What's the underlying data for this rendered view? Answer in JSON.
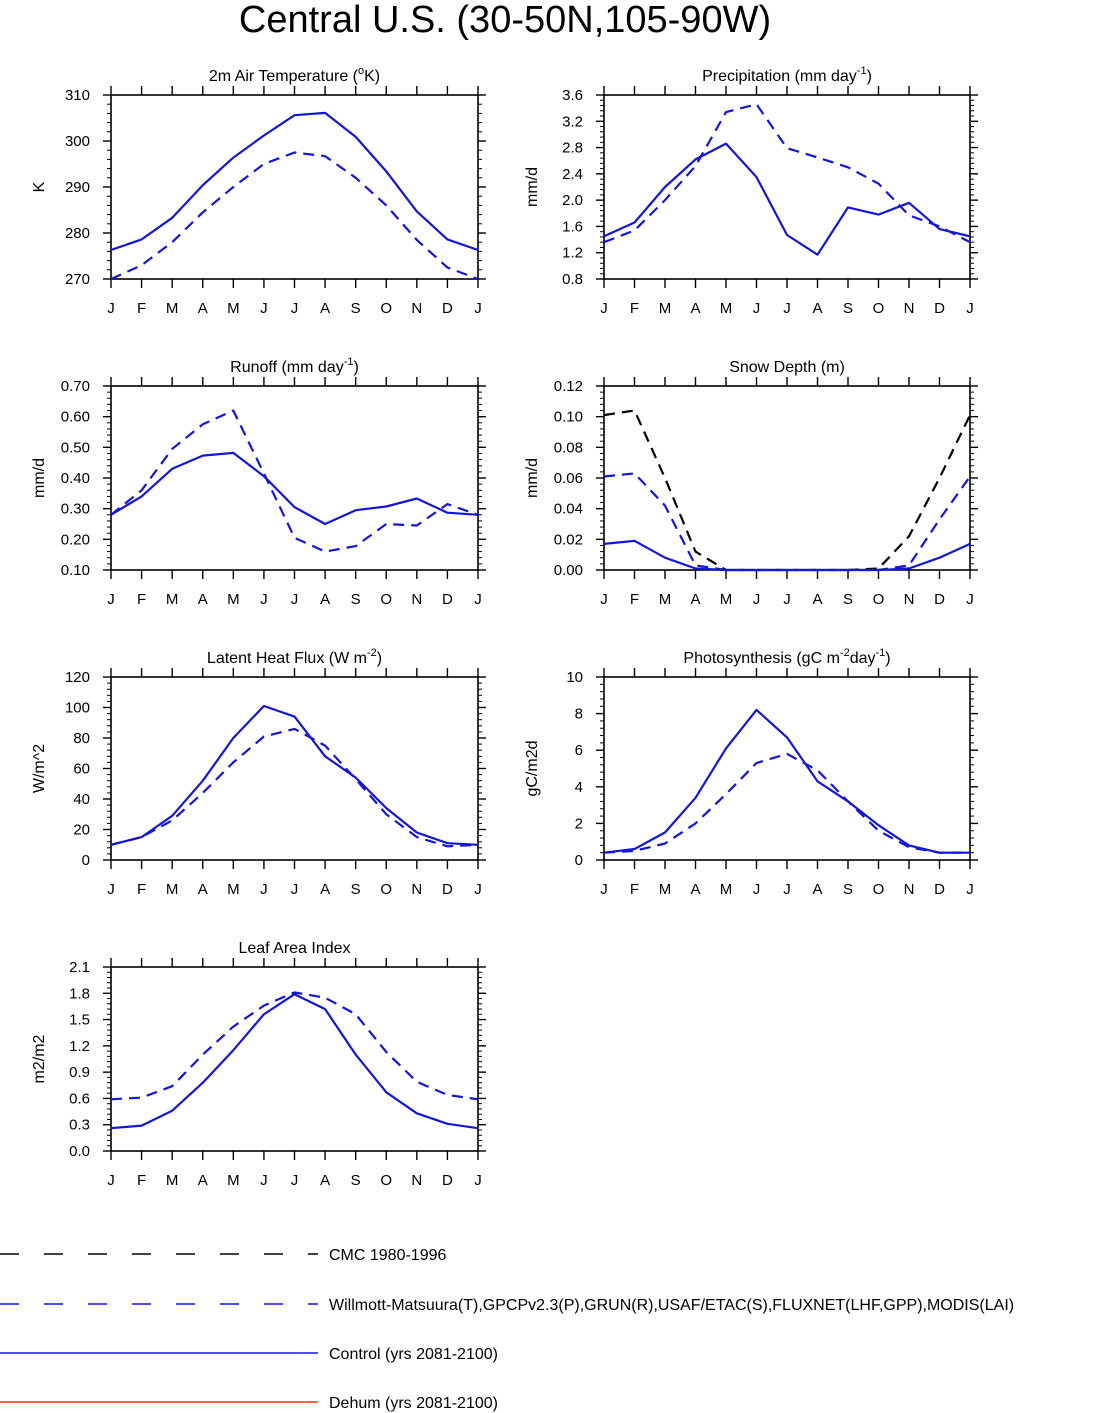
{
  "figure": {
    "title": "Central U.S. (30-50N,105-90W)"
  },
  "legend": [
    {
      "label": "CMC 1980-1996",
      "color": "#000000",
      "style": "dashed"
    },
    {
      "label": "Willmott-Matsuura(T),GPCPv2.3(P),GRUN(R),USAF/ETAC(S),FLUXNET(LHF,GPP),MODIS(LAI)",
      "color": "#1515d8",
      "style": "dashed"
    },
    {
      "label": "Control (yrs 2081-2100)",
      "color": "#1515d8",
      "style": "solid"
    },
    {
      "label": "Dehum (yrs 2081-2100)",
      "color": "#ff2a10",
      "style": "solid"
    }
  ],
  "chart_data": [
    {
      "type": "line",
      "title": "2m Air Temperature (°K)",
      "title_parts": [
        {
          "t": "2m Air Temperature ("
        },
        {
          "t": "o",
          "sup": true
        },
        {
          "t": "K)"
        }
      ],
      "ylabel": "K",
      "xlabel": "",
      "categories": [
        "J",
        "F",
        "M",
        "A",
        "M",
        "J",
        "J",
        "A",
        "S",
        "O",
        "N",
        "D",
        "J"
      ],
      "ylim": [
        270,
        310
      ],
      "yticks": [
        270,
        280,
        290,
        300,
        310
      ],
      "ytick_labels": [
        "270",
        "280",
        "290",
        "300",
        "310"
      ],
      "series": [
        {
          "name": "Willmott-Matsuura(T),GPCPv2.3(P),GRUN(R),USAF/ETAC(S),FLUXNET(LHF,GPP),MODIS(LAI)",
          "color": "#1515d8",
          "style": "dashed",
          "values": [
            270.0,
            273.0,
            278.0,
            284.5,
            290.0,
            295.0,
            297.5,
            296.7,
            292.0,
            286.0,
            278.5,
            272.5,
            270.0
          ]
        },
        {
          "name": "Control (yrs 2081-2100)",
          "color": "#1515d8",
          "style": "solid",
          "values": [
            276.3,
            278.6,
            283.3,
            290.4,
            296.4,
            301.2,
            305.6,
            306.1,
            300.9,
            293.4,
            284.7,
            278.6,
            276.3
          ]
        }
      ]
    },
    {
      "type": "line",
      "title": "Precipitation (mm day-1)",
      "title_parts": [
        {
          "t": "Precipitation (mm day"
        },
        {
          "t": "-1",
          "sup": true
        },
        {
          "t": ")"
        }
      ],
      "ylabel": "mm/d",
      "xlabel": "",
      "categories": [
        "J",
        "F",
        "M",
        "A",
        "M",
        "J",
        "J",
        "A",
        "S",
        "O",
        "N",
        "D",
        "J"
      ],
      "ylim": [
        0.8,
        3.6
      ],
      "yticks": [
        0.8,
        1.2,
        1.6,
        2.0,
        2.4,
        2.8,
        3.2,
        3.6
      ],
      "ytick_labels": [
        "0.8",
        "1.2",
        "1.6",
        "2.0",
        "2.4",
        "2.8",
        "3.2",
        "3.6"
      ],
      "series": [
        {
          "name": "Willmott-Matsuura(T),GPCPv2.3(P),GRUN(R),USAF/ETAC(S),FLUXNET(LHF,GPP),MODIS(LAI)",
          "color": "#1515d8",
          "style": "dashed",
          "values": [
            1.36,
            1.54,
            2.0,
            2.52,
            3.34,
            3.46,
            2.79,
            2.65,
            2.5,
            2.25,
            1.77,
            1.6,
            1.36
          ]
        },
        {
          "name": "Control (yrs 2081-2100)",
          "color": "#1515d8",
          "style": "solid",
          "values": [
            1.45,
            1.66,
            2.2,
            2.62,
            2.86,
            2.35,
            1.47,
            1.17,
            1.89,
            1.78,
            1.96,
            1.56,
            1.45
          ]
        }
      ]
    },
    {
      "type": "line",
      "title": "Runoff (mm day-1)",
      "title_parts": [
        {
          "t": "Runoff (mm day"
        },
        {
          "t": "-1",
          "sup": true
        },
        {
          "t": ")"
        }
      ],
      "ylabel": "mm/d",
      "xlabel": "",
      "categories": [
        "J",
        "F",
        "M",
        "A",
        "M",
        "J",
        "J",
        "A",
        "S",
        "O",
        "N",
        "D",
        "J"
      ],
      "ylim": [
        0.1,
        0.7
      ],
      "yticks": [
        0.1,
        0.2,
        0.3,
        0.4,
        0.5,
        0.6,
        0.7
      ],
      "ytick_labels": [
        "0.10",
        "0.20",
        "0.30",
        "0.40",
        "0.50",
        "0.60",
        "0.70"
      ],
      "series": [
        {
          "name": "Willmott-Matsuura(T),GPCPv2.3(P),GRUN(R),USAF/ETAC(S),FLUXNET(LHF,GPP),MODIS(LAI)",
          "color": "#1515d8",
          "style": "dashed",
          "values": [
            0.28,
            0.36,
            0.495,
            0.575,
            0.62,
            0.415,
            0.205,
            0.16,
            0.178,
            0.25,
            0.245,
            0.315,
            0.28
          ]
        },
        {
          "name": "Control (yrs 2081-2100)",
          "color": "#1515d8",
          "style": "solid",
          "values": [
            0.28,
            0.34,
            0.43,
            0.473,
            0.482,
            0.406,
            0.305,
            0.25,
            0.295,
            0.307,
            0.333,
            0.287,
            0.28
          ]
        }
      ]
    },
    {
      "type": "line",
      "title": "Snow Depth (m)",
      "title_parts": [
        {
          "t": "Snow Depth (m)"
        }
      ],
      "ylabel": "mm/d",
      "xlabel": "",
      "categories": [
        "J",
        "F",
        "M",
        "A",
        "M",
        "J",
        "J",
        "A",
        "S",
        "O",
        "N",
        "D",
        "J"
      ],
      "ylim": [
        0.0,
        0.12
      ],
      "yticks": [
        0.0,
        0.02,
        0.04,
        0.06,
        0.08,
        0.1,
        0.12
      ],
      "ytick_labels": [
        "0.00",
        "0.02",
        "0.04",
        "0.06",
        "0.08",
        "0.10",
        "0.12"
      ],
      "series": [
        {
          "name": "CMC 1980-1996",
          "color": "#000000",
          "style": "dashed",
          "values": [
            0.101,
            0.104,
            0.06,
            0.012,
            0.0,
            0.0,
            0.0,
            0.0,
            0.0,
            0.001,
            0.022,
            0.06,
            0.101
          ]
        },
        {
          "name": "Willmott-Matsuura(T),GPCPv2.3(P),GRUN(R),USAF/ETAC(S),FLUXNET(LHF,GPP),MODIS(LAI)",
          "color": "#1515d8",
          "style": "dashed",
          "values": [
            0.061,
            0.063,
            0.042,
            0.003,
            0.0,
            0.0,
            0.0,
            0.0,
            0.0,
            0.0,
            0.003,
            0.033,
            0.061
          ]
        },
        {
          "name": "Control (yrs 2081-2100)",
          "color": "#1515d8",
          "style": "solid",
          "values": [
            0.017,
            0.019,
            0.008,
            0.001,
            0.0,
            0.0,
            0.0,
            0.0,
            0.0,
            0.0,
            0.001,
            0.008,
            0.017
          ]
        }
      ]
    },
    {
      "type": "line",
      "title": "Latent Heat Flux (W m-2)",
      "title_parts": [
        {
          "t": "Latent Heat Flux (W m"
        },
        {
          "t": "-2",
          "sup": true
        },
        {
          "t": ")"
        }
      ],
      "ylabel": "W/m^2",
      "xlabel": "",
      "categories": [
        "J",
        "F",
        "M",
        "A",
        "M",
        "J",
        "J",
        "A",
        "S",
        "O",
        "N",
        "D",
        "J"
      ],
      "ylim": [
        0,
        120
      ],
      "yticks": [
        0,
        20,
        40,
        60,
        80,
        100,
        120
      ],
      "ytick_labels": [
        "0",
        "20",
        "40",
        "60",
        "80",
        "100",
        "120"
      ],
      "series": [
        {
          "name": "Willmott-Matsuura(T),GPCPv2.3(P),GRUN(R),USAF/ETAC(S),FLUXNET(LHF,GPP),MODIS(LAI)",
          "color": "#1515d8",
          "style": "dashed",
          "values": [
            10,
            15,
            26,
            44,
            64,
            81,
            86,
            75,
            53,
            30,
            15,
            9,
            10
          ]
        },
        {
          "name": "Control (yrs 2081-2100)",
          "color": "#1515d8",
          "style": "solid",
          "values": [
            10,
            15,
            29,
            52,
            80,
            101,
            94,
            68,
            54,
            34,
            18,
            11,
            10
          ]
        }
      ]
    },
    {
      "type": "line",
      "title": "Photosynthesis (gC m-2day-1)",
      "title_parts": [
        {
          "t": "Photosynthesis (gC m"
        },
        {
          "t": "-2",
          "sup": true
        },
        {
          "t": "day"
        },
        {
          "t": "-1",
          "sup": true
        },
        {
          "t": ")"
        }
      ],
      "ylabel": "gC/m2d",
      "xlabel": "",
      "categories": [
        "J",
        "F",
        "M",
        "A",
        "M",
        "J",
        "J",
        "A",
        "S",
        "O",
        "N",
        "D",
        "J"
      ],
      "ylim": [
        0,
        10
      ],
      "yticks": [
        0,
        2,
        4,
        6,
        8,
        10
      ],
      "ytick_labels": [
        "0",
        "2",
        "4",
        "6",
        "8",
        "10"
      ],
      "series": [
        {
          "name": "Willmott-Matsuura(T),GPCPv2.3(P),GRUN(R),USAF/ETAC(S),FLUXNET(LHF,GPP),MODIS(LAI)",
          "color": "#1515d8",
          "style": "dashed",
          "values": [
            0.4,
            0.5,
            0.9,
            2.0,
            3.6,
            5.3,
            5.8,
            4.9,
            3.2,
            1.6,
            0.7,
            0.4,
            0.4
          ]
        },
        {
          "name": "Control (yrs 2081-2100)",
          "color": "#1515d8",
          "style": "solid",
          "values": [
            0.4,
            0.6,
            1.5,
            3.4,
            6.1,
            8.2,
            6.7,
            4.3,
            3.2,
            1.9,
            0.8,
            0.4,
            0.4
          ]
        }
      ]
    },
    {
      "type": "line",
      "title": "Leaf Area Index",
      "title_parts": [
        {
          "t": "Leaf Area Index"
        }
      ],
      "ylabel": "m2/m2",
      "xlabel": "",
      "categories": [
        "J",
        "F",
        "M",
        "A",
        "M",
        "J",
        "J",
        "A",
        "S",
        "O",
        "N",
        "D",
        "J"
      ],
      "ylim": [
        0.0,
        2.1
      ],
      "yticks": [
        0.0,
        0.3,
        0.6,
        0.9,
        1.2,
        1.5,
        1.8,
        2.1
      ],
      "ytick_labels": [
        "0.0",
        "0.3",
        "0.6",
        "0.9",
        "1.2",
        "1.5",
        "1.8",
        "2.1"
      ],
      "series": [
        {
          "name": "Willmott-Matsuura(T),GPCPv2.3(P),GRUN(R),USAF/ETAC(S),FLUXNET(LHF,GPP),MODIS(LAI)",
          "color": "#1515d8",
          "style": "dashed",
          "values": [
            0.59,
            0.61,
            0.74,
            1.1,
            1.42,
            1.66,
            1.81,
            1.75,
            1.56,
            1.13,
            0.79,
            0.64,
            0.59
          ]
        },
        {
          "name": "Control (yrs 2081-2100)",
          "color": "#1515d8",
          "style": "solid",
          "values": [
            0.26,
            0.29,
            0.46,
            0.78,
            1.15,
            1.56,
            1.79,
            1.62,
            1.1,
            0.67,
            0.43,
            0.31,
            0.26
          ]
        }
      ]
    }
  ]
}
